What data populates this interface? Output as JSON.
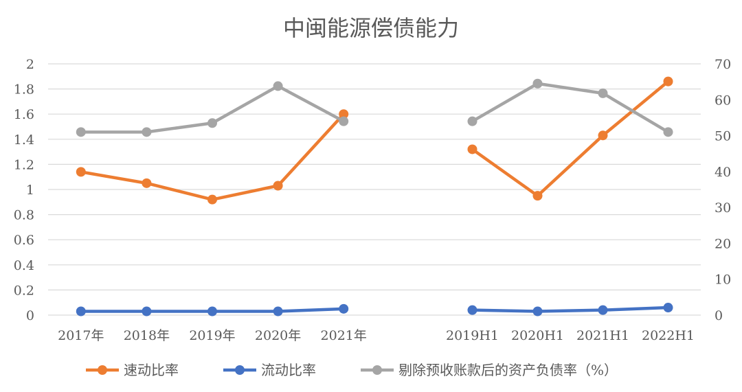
{
  "chart_data": {
    "type": "line",
    "title": "中闽能源偿债能力",
    "left_axis": {
      "ylim": [
        0,
        2
      ],
      "ticks": [
        "0",
        "0.2",
        "0.4",
        "0.6",
        "0.8",
        "1",
        "1.2",
        "1.4",
        "1.6",
        "1.8",
        "2"
      ]
    },
    "right_axis": {
      "ylim": [
        0,
        70
      ],
      "ticks": [
        "0",
        "10",
        "20",
        "30",
        "40",
        "50",
        "60",
        "70"
      ]
    },
    "grid": true,
    "legend_position": "bottom",
    "groups": [
      {
        "categories": [
          "2017年",
          "2018年",
          "2019年",
          "2020年",
          "2021年"
        ],
        "series": [
          {
            "name": "速动比率",
            "axis": "left",
            "color": "#ed7d31",
            "values": [
              1.14,
              1.05,
              0.92,
              1.03,
              1.6
            ]
          },
          {
            "name": "流动比率",
            "axis": "left",
            "color": "#4472c4",
            "values": [
              0.03,
              0.03,
              0.03,
              0.03,
              0.05
            ]
          },
          {
            "name": "剔除预收账款后的资产负债率（%）",
            "axis": "right",
            "color": "#a5a5a5",
            "values": [
              51,
              51,
              53.5,
              63.8,
              54
            ]
          }
        ]
      },
      {
        "categories": [
          "2019H1",
          "2020H1",
          "2021H1",
          "2022H1"
        ],
        "series": [
          {
            "name": "速动比率",
            "axis": "left",
            "color": "#ed7d31",
            "values": [
              1.32,
              0.95,
              1.43,
              1.86
            ]
          },
          {
            "name": "流动比率",
            "axis": "left",
            "color": "#4472c4",
            "values": [
              0.04,
              0.03,
              0.04,
              0.06
            ]
          },
          {
            "name": "剔除预收账款后的资产负债率（%）",
            "axis": "right",
            "color": "#a5a5a5",
            "values": [
              54,
              64.5,
              61.8,
              51
            ]
          }
        ]
      }
    ],
    "legend": [
      {
        "name": "速动比率",
        "color": "#ed7d31"
      },
      {
        "name": "流动比率",
        "color": "#4472c4"
      },
      {
        "name": "剔除预收账款后的资产负债率（%）",
        "color": "#a5a5a5"
      }
    ]
  }
}
